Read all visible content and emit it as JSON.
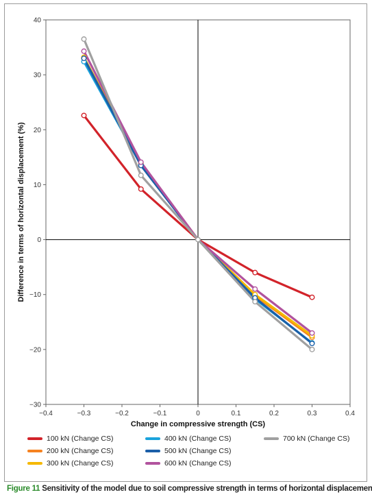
{
  "chart_data": {
    "type": "line",
    "xlabel": "Change in compressive strength (CS)",
    "ylabel": "Difference in terms of horizontal displacement (%)",
    "xlim": [
      -0.4,
      0.4
    ],
    "ylim": [
      -30,
      40
    ],
    "x_ticks": [
      "−0.4",
      "−0.3",
      "−0.2",
      "−0.1",
      "0",
      "0.1",
      "0.2",
      "0.3",
      "0.4"
    ],
    "y_ticks": [
      "−30",
      "−20",
      "−10",
      "0",
      "10",
      "20",
      "30",
      "40"
    ],
    "x": [
      -0.3,
      -0.15,
      0,
      0.15,
      0.3
    ],
    "series": [
      {
        "name": "100 kN (Change CS)",
        "color": "#d2232a",
        "values": [
          22.6,
          9.2,
          0,
          -6.0,
          -10.5
        ]
      },
      {
        "name": "200 kN (Change CS)",
        "color": "#f58220",
        "values": [
          33.0,
          13.8,
          0,
          -10.2,
          -17.8
        ]
      },
      {
        "name": "300 kN (Change CS)",
        "color": "#f5b800",
        "values": [
          33.2,
          13.9,
          0,
          -10.0,
          -17.5
        ]
      },
      {
        "name": "400 kN (Change CS)",
        "color": "#1aa3dc",
        "values": [
          32.4,
          13.6,
          0,
          -10.8,
          -18.8
        ]
      },
      {
        "name": "500 kN (Change CS)",
        "color": "#1b5fa8",
        "values": [
          33.0,
          13.5,
          0,
          -10.6,
          -18.9
        ]
      },
      {
        "name": "600 kN (Change CS)",
        "color": "#b1539e",
        "values": [
          34.3,
          14.1,
          0,
          -9.0,
          -17.0
        ]
      },
      {
        "name": "700 kN (Change CS)",
        "color": "#a0a0a0",
        "values": [
          36.5,
          11.7,
          0,
          -11.3,
          -20.0
        ]
      }
    ],
    "legend_position": "bottom",
    "grid": false,
    "axis_color": "#666666",
    "zero_line_color": "#000000",
    "marker_fill": "#ffffff"
  },
  "caption": {
    "label": "Figure 11",
    "text": "Sensitivity of the model due to soil compressive strength in terms of horizontal displacement",
    "label_color": "#2a8a2a"
  }
}
